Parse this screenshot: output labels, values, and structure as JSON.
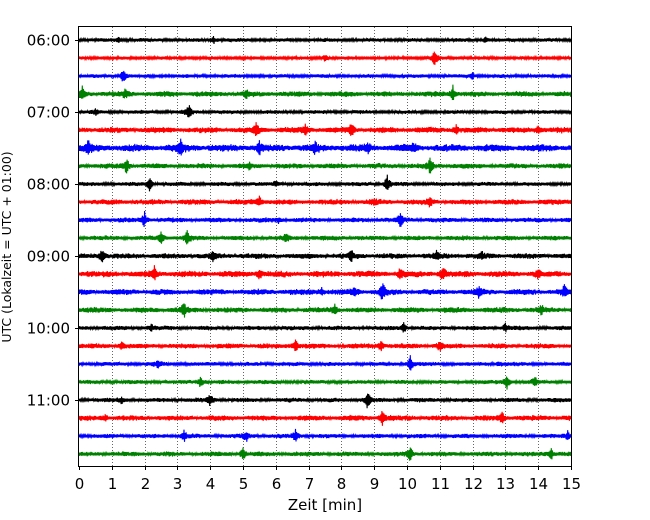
{
  "chart_data": {
    "type": "line",
    "xlabel": "Zeit  [min]",
    "ylabel": "UTC (Lokalzeit = UTC + 01:00)",
    "xlim": [
      0,
      15
    ],
    "x_ticks": [
      0,
      1,
      2,
      3,
      4,
      5,
      6,
      7,
      8,
      9,
      10,
      11,
      12,
      13,
      14,
      15
    ],
    "y_tick_labels": [
      "06:00",
      "07:00",
      "08:00",
      "09:00",
      "10:00",
      "11:00"
    ],
    "grid": "vertical dotted",
    "trace_colors": [
      "#000000",
      "#ff0000",
      "#0000ff",
      "#008000"
    ],
    "traces": [
      {
        "start": "06:00",
        "color": "#000000",
        "amp": 0.2,
        "events": [
          [
            4.1,
            0.5
          ],
          [
            12.4,
            0.4
          ],
          [
            1.2,
            0.3
          ]
        ]
      },
      {
        "start": "06:15",
        "color": "#ff0000",
        "amp": 0.17,
        "events": [
          [
            10.85,
            1.0
          ],
          [
            7.5,
            0.4
          ]
        ]
      },
      {
        "start": "06:30",
        "color": "#0000ff",
        "amp": 0.2,
        "events": [
          [
            1.35,
            0.9
          ],
          [
            12.0,
            0.35
          ]
        ]
      },
      {
        "start": "06:45",
        "color": "#008000",
        "amp": 0.3,
        "events": [
          [
            0.1,
            0.7
          ],
          [
            1.4,
            0.45
          ],
          [
            11.4,
            0.9
          ],
          [
            5.1,
            0.35
          ]
        ]
      },
      {
        "start": "07:00",
        "color": "#000000",
        "amp": 0.2,
        "events": [
          [
            3.35,
            0.85
          ],
          [
            0.5,
            0.3
          ]
        ]
      },
      {
        "start": "07:15",
        "color": "#ff0000",
        "amp": 0.32,
        "events": [
          [
            5.4,
            0.6
          ],
          [
            8.3,
            0.85
          ],
          [
            6.9,
            0.5
          ],
          [
            11.5,
            0.45
          ],
          [
            14.0,
            0.4
          ]
        ]
      },
      {
        "start": "07:30",
        "color": "#0000ff",
        "amp": 0.4,
        "events": [
          [
            0.3,
            0.7
          ],
          [
            3.1,
            0.9
          ],
          [
            5.5,
            0.6
          ],
          [
            7.2,
            0.6
          ],
          [
            8.8,
            0.5
          ],
          [
            10.2,
            0.4
          ]
        ]
      },
      {
        "start": "07:45",
        "color": "#008000",
        "amp": 0.28,
        "events": [
          [
            1.45,
            0.9
          ],
          [
            10.7,
            0.8
          ],
          [
            5.2,
            0.35
          ]
        ]
      },
      {
        "start": "08:00",
        "color": "#000000",
        "amp": 0.22,
        "events": [
          [
            2.15,
            1.0
          ],
          [
            9.4,
            0.95
          ],
          [
            6.0,
            0.3
          ]
        ]
      },
      {
        "start": "08:15",
        "color": "#ff0000",
        "amp": 0.3,
        "events": [
          [
            5.5,
            0.55
          ],
          [
            10.7,
            0.45
          ],
          [
            9.0,
            0.35
          ]
        ]
      },
      {
        "start": "08:30",
        "color": "#0000ff",
        "amp": 0.26,
        "events": [
          [
            2.0,
            0.85
          ],
          [
            9.8,
            0.75
          ],
          [
            6.1,
            0.35
          ]
        ]
      },
      {
        "start": "08:45",
        "color": "#008000",
        "amp": 0.26,
        "events": [
          [
            2.5,
            0.6
          ],
          [
            3.3,
            0.7
          ],
          [
            6.3,
            0.4
          ]
        ]
      },
      {
        "start": "09:00",
        "color": "#000000",
        "amp": 0.3,
        "events": [
          [
            0.7,
            0.75
          ],
          [
            4.1,
            0.55
          ],
          [
            8.3,
            0.55
          ],
          [
            10.9,
            0.45
          ],
          [
            12.3,
            0.4
          ]
        ]
      },
      {
        "start": "09:15",
        "color": "#ff0000",
        "amp": 0.34,
        "events": [
          [
            2.3,
            0.8
          ],
          [
            5.5,
            0.55
          ],
          [
            9.8,
            0.6
          ],
          [
            11.1,
            0.85
          ],
          [
            14.0,
            0.45
          ]
        ]
      },
      {
        "start": "09:30",
        "color": "#0000ff",
        "amp": 0.32,
        "events": [
          [
            7.4,
            0.5
          ],
          [
            8.4,
            0.6
          ],
          [
            9.25,
            0.95
          ],
          [
            12.2,
            0.6
          ],
          [
            14.8,
            0.7
          ]
        ]
      },
      {
        "start": "09:45",
        "color": "#008000",
        "amp": 0.3,
        "events": [
          [
            3.2,
            0.75
          ],
          [
            7.8,
            0.5
          ],
          [
            14.1,
            0.4
          ]
        ]
      },
      {
        "start": "10:00",
        "color": "#000000",
        "amp": 0.24,
        "events": [
          [
            9.9,
            0.55
          ],
          [
            13.0,
            0.5
          ],
          [
            2.2,
            0.3
          ]
        ]
      },
      {
        "start": "10:15",
        "color": "#ff0000",
        "amp": 0.28,
        "events": [
          [
            6.6,
            0.7
          ],
          [
            9.2,
            0.55
          ],
          [
            11.0,
            0.5
          ],
          [
            1.3,
            0.35
          ]
        ]
      },
      {
        "start": "10:30",
        "color": "#0000ff",
        "amp": 0.22,
        "events": [
          [
            10.1,
            0.85
          ],
          [
            2.4,
            0.45
          ],
          [
            12.8,
            0.35
          ]
        ]
      },
      {
        "start": "10:45",
        "color": "#008000",
        "amp": 0.22,
        "events": [
          [
            3.7,
            0.75
          ],
          [
            13.05,
            0.85
          ],
          [
            13.9,
            0.5
          ]
        ]
      },
      {
        "start": "11:00",
        "color": "#000000",
        "amp": 0.24,
        "events": [
          [
            4.0,
            0.65
          ],
          [
            8.8,
            0.9
          ],
          [
            1.3,
            0.35
          ]
        ]
      },
      {
        "start": "11:15",
        "color": "#ff0000",
        "amp": 0.3,
        "events": [
          [
            9.25,
            0.75
          ],
          [
            12.9,
            0.5
          ],
          [
            0.8,
            0.35
          ]
        ]
      },
      {
        "start": "11:30",
        "color": "#0000ff",
        "amp": 0.24,
        "events": [
          [
            3.2,
            0.6
          ],
          [
            5.1,
            0.55
          ],
          [
            6.6,
            0.6
          ],
          [
            14.9,
            0.5
          ]
        ]
      },
      {
        "start": "11:45",
        "color": "#008000",
        "amp": 0.26,
        "events": [
          [
            5.0,
            0.75
          ],
          [
            10.1,
            0.8
          ],
          [
            14.4,
            0.6
          ]
        ]
      }
    ]
  }
}
